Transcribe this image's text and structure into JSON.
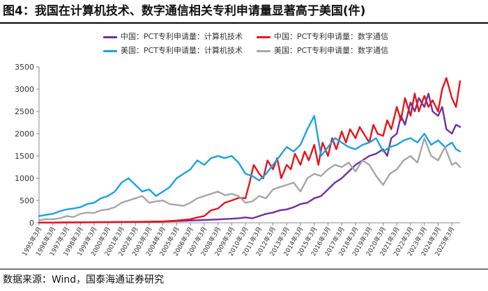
{
  "title": "图4：我国在计算机技术、数字通信相关专利申请量显著高于美国(件)",
  "source": "数据来源：Wind，国泰海通证券研究",
  "chart_data": {
    "type": "line",
    "ylim": [
      0,
      3500
    ],
    "yticks": [
      0,
      500,
      1000,
      1500,
      2000,
      2500,
      3000,
      3500
    ],
    "categories": [
      "1995年3月",
      "1996年3月",
      "1997年3月",
      "1998年3月",
      "1999年3月",
      "2000年3月",
      "2001年3月",
      "2002年3月",
      "2003年3月",
      "2004年3月",
      "2005年3月",
      "2006年3月",
      "2007年3月",
      "2008年3月",
      "2009年3月",
      "2010年3月",
      "2011年3月",
      "2012年3月",
      "2013年3月",
      "2014年3月",
      "2015年3月",
      "2016年3月",
      "2017年3月",
      "2018年3月",
      "2019年3月",
      "2020年3月",
      "2021年3月",
      "2022年3月",
      "2023年3月",
      "2024年3月",
      "2025年3月"
    ],
    "x_end": 30.6,
    "legend": {
      "position": "top-center"
    },
    "series": [
      {
        "name": "中国：PCT专利申请量：计算机技术",
        "color": "#7030a0",
        "x": [
          0,
          1,
          2,
          3,
          4,
          5,
          6,
          7,
          8,
          9,
          10,
          11,
          12,
          13,
          14,
          14.5,
          15,
          15.5,
          16,
          16.5,
          17,
          17.5,
          18,
          18.5,
          19,
          19.5,
          20,
          20.5,
          21,
          21.5,
          22,
          22.5,
          23,
          23.5,
          24,
          24.5,
          25,
          25.3,
          25.6,
          26,
          26.3,
          26.6,
          27,
          27.3,
          27.6,
          28,
          28.3,
          28.6,
          29,
          29.3,
          29.6,
          30,
          30.3,
          30.6
        ],
        "values": [
          5,
          5,
          6,
          8,
          10,
          12,
          15,
          18,
          22,
          28,
          38,
          50,
          62,
          75,
          90,
          100,
          120,
          100,
          150,
          200,
          230,
          280,
          300,
          350,
          420,
          450,
          550,
          600,
          750,
          900,
          1000,
          1150,
          1300,
          1400,
          1500,
          1550,
          1650,
          1500,
          1900,
          2000,
          2400,
          2200,
          2700,
          2500,
          2800,
          2600,
          2900,
          2500,
          2400,
          2600,
          2100,
          2000,
          2200,
          2150
        ]
      },
      {
        "name": "中国：PCT专利申请量：数字通信",
        "color": "#e8131b",
        "x": [
          0,
          1,
          2,
          3,
          4,
          5,
          6,
          7,
          8,
          9,
          10,
          11,
          11.5,
          12,
          12.5,
          13,
          13.5,
          14,
          14.5,
          15,
          15.3,
          15.6,
          16,
          16.3,
          16.6,
          17,
          17.3,
          17.6,
          18,
          18.3,
          18.6,
          19,
          19.3,
          19.6,
          20,
          20.3,
          20.6,
          21,
          21.3,
          21.6,
          22,
          22.3,
          22.6,
          23,
          23.3,
          23.6,
          24,
          24.3,
          24.6,
          25,
          25.3,
          25.6,
          26,
          26.3,
          26.6,
          27,
          27.3,
          27.6,
          28,
          28.3,
          28.6,
          29,
          29.3,
          29.6,
          30,
          30.3,
          30.6
        ],
        "values": [
          5,
          5,
          8,
          10,
          12,
          15,
          18,
          20,
          25,
          30,
          50,
          80,
          120,
          150,
          280,
          320,
          450,
          500,
          560,
          550,
          900,
          1300,
          1100,
          1000,
          1400,
          1200,
          1450,
          1000,
          1300,
          1200,
          1550,
          1300,
          1600,
          1400,
          1750,
          1300,
          1800,
          1500,
          1900,
          1650,
          2050,
          1800,
          2100,
          1900,
          2150,
          2000,
          1800,
          2200,
          2000,
          1950,
          2300,
          2100,
          2600,
          2300,
          2800,
          2400,
          2900,
          2500,
          2850,
          2600,
          2750,
          2500,
          3000,
          3250,
          2800,
          2600,
          3180
        ]
      },
      {
        "name": "美国：PCT专利申请量：计算机技术",
        "color": "#1ba1e2",
        "x": [
          0,
          0.5,
          1,
          1.5,
          2,
          2.5,
          3,
          3.5,
          4,
          4.5,
          5,
          5.5,
          6,
          6.5,
          7,
          7.5,
          8,
          8.5,
          9,
          9.5,
          10,
          10.5,
          11,
          11.5,
          12,
          12.5,
          13,
          13.5,
          14,
          14.5,
          15,
          15.5,
          16,
          16.5,
          17,
          17.5,
          18,
          18.5,
          19,
          19.5,
          20,
          20.5,
          21,
          21.5,
          22,
          22.5,
          23,
          23.5,
          24,
          24.5,
          25,
          25.5,
          26,
          26.5,
          27,
          27.5,
          28,
          28.5,
          29,
          29.5,
          30,
          30.3,
          30.6
        ],
        "values": [
          150,
          180,
          200,
          260,
          300,
          320,
          350,
          420,
          450,
          550,
          600,
          700,
          900,
          1000,
          850,
          700,
          750,
          600,
          700,
          800,
          1000,
          1100,
          1200,
          1400,
          1300,
          1450,
          1500,
          1450,
          1500,
          1350,
          1100,
          1050,
          950,
          1100,
          1300,
          1500,
          1700,
          1600,
          1750,
          2100,
          2400,
          1500,
          1700,
          1900,
          1800,
          1700,
          1650,
          1750,
          1800,
          1900,
          1600,
          1700,
          1750,
          1850,
          1900,
          1800,
          2000,
          1750,
          1850,
          1700,
          1800,
          1650,
          1600
        ]
      },
      {
        "name": "美国：PCT专利申请量：数字通信",
        "color": "#a6a6a6",
        "x": [
          0,
          0.5,
          1,
          1.5,
          2,
          2.5,
          3,
          3.5,
          4,
          4.5,
          5,
          5.5,
          6,
          6.5,
          7,
          7.5,
          8,
          8.5,
          9,
          9.5,
          10,
          10.5,
          11,
          11.5,
          12,
          12.5,
          13,
          13.5,
          14,
          14.5,
          15,
          15.5,
          16,
          16.5,
          17,
          17.5,
          18,
          18.5,
          19,
          19.5,
          20,
          20.5,
          21,
          21.5,
          22,
          22.5,
          23,
          23.5,
          24,
          24.5,
          25,
          25.5,
          26,
          26.5,
          27,
          27.5,
          28,
          28.5,
          29,
          29.5,
          30,
          30.3,
          30.6
        ],
        "values": [
          60,
          80,
          80,
          100,
          150,
          130,
          200,
          230,
          220,
          280,
          300,
          350,
          450,
          500,
          550,
          600,
          450,
          480,
          500,
          420,
          400,
          380,
          450,
          550,
          600,
          650,
          700,
          620,
          650,
          600,
          450,
          480,
          600,
          550,
          750,
          800,
          850,
          900,
          700,
          1000,
          1100,
          1050,
          1200,
          1300,
          1250,
          1350,
          1150,
          1400,
          1300,
          1050,
          850,
          1100,
          1200,
          1400,
          1500,
          1350,
          1900,
          1500,
          1400,
          1700,
          1300,
          1350,
          1250
        ]
      }
    ]
  }
}
